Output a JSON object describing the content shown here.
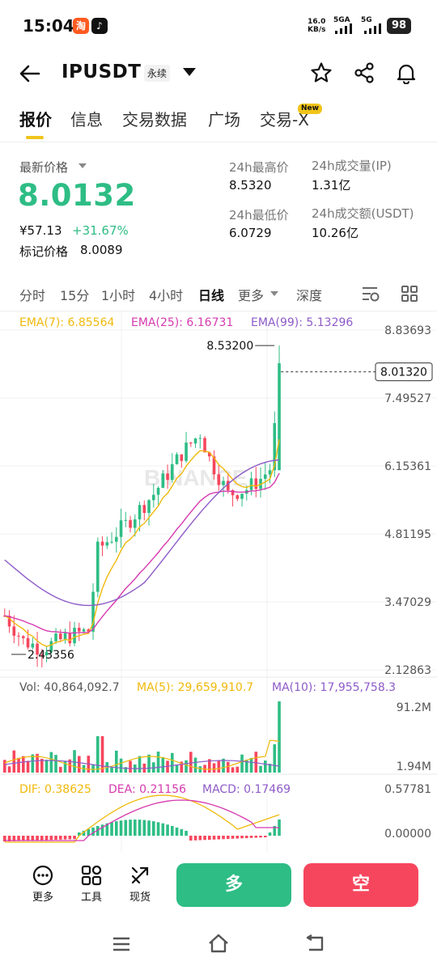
{
  "status_bar": {
    "time": "15:04",
    "net_speed": "16.0",
    "net_unit": "KB/s",
    "sig1_label": "5GA",
    "sig2_label": "5G",
    "battery": "98",
    "app_icon_1": "taobao-icon",
    "app_icon_2": "tiktok-icon"
  },
  "header": {
    "symbol": "IPUSDT",
    "contract_type": "永续"
  },
  "tabs": [
    {
      "label": "报价",
      "active": true
    },
    {
      "label": "信息"
    },
    {
      "label": "交易数据"
    },
    {
      "label": "广场"
    },
    {
      "label": "交易-X",
      "badge": "New"
    }
  ],
  "price": {
    "last_label": "最新价格",
    "last_price": "8.0132",
    "cny": "¥57.13",
    "change_pct": "+31.67%",
    "mark_label": "标记价格",
    "mark_value": "8.0089"
  },
  "stats": {
    "high_label": "24h最高价",
    "high_value": "8.5320",
    "low_label": "24h最低价",
    "low_value": "6.0729",
    "vol_label": "24h成交量(IP)",
    "vol_value": "1.31亿",
    "turnover_label": "24h成交额(USDT)",
    "turnover_value": "10.26亿"
  },
  "intervals": {
    "items": [
      "分时",
      "15分",
      "1小时",
      "4小时",
      "日线",
      "更多",
      "深度"
    ],
    "active": "日线"
  },
  "indicators": {
    "ema7": "EMA(7): 6.85564",
    "ema25": "EMA(25): 6.16731",
    "ema99": "EMA(99): 5.13296",
    "vol": "Vol: 40,864,092.7",
    "ma5": "MA(5): 29,659,910.7",
    "ma10": "MA(10): 17,955,758.3",
    "dif": "DIF: 0.38625",
    "dea": "DEA: 0.21156",
    "macd": "MACD: 0.17469"
  },
  "chart_data": {
    "type": "candlestick",
    "price_axis": [
      "8.83693",
      "7.49527",
      "6.15361",
      "4.81195",
      "3.47029",
      "2.12863"
    ],
    "current_price_tag": "8.01320",
    "high_marker": "8.53200",
    "low_marker": "2.43356",
    "volume_axis": [
      "91.2M",
      "1.94M"
    ],
    "macd_axis": [
      "0.57781",
      "0.00000"
    ],
    "watermark": "BINANCE",
    "colors": {
      "up": "#2ebd85",
      "down": "#f6465d",
      "ema7": "#f0b90b",
      "ema25": "#d63aaf",
      "ema99": "#8e5bc8"
    }
  },
  "actions": {
    "more": "更多",
    "tools": "工具",
    "spot": "现货",
    "long": "多",
    "short": "空"
  }
}
